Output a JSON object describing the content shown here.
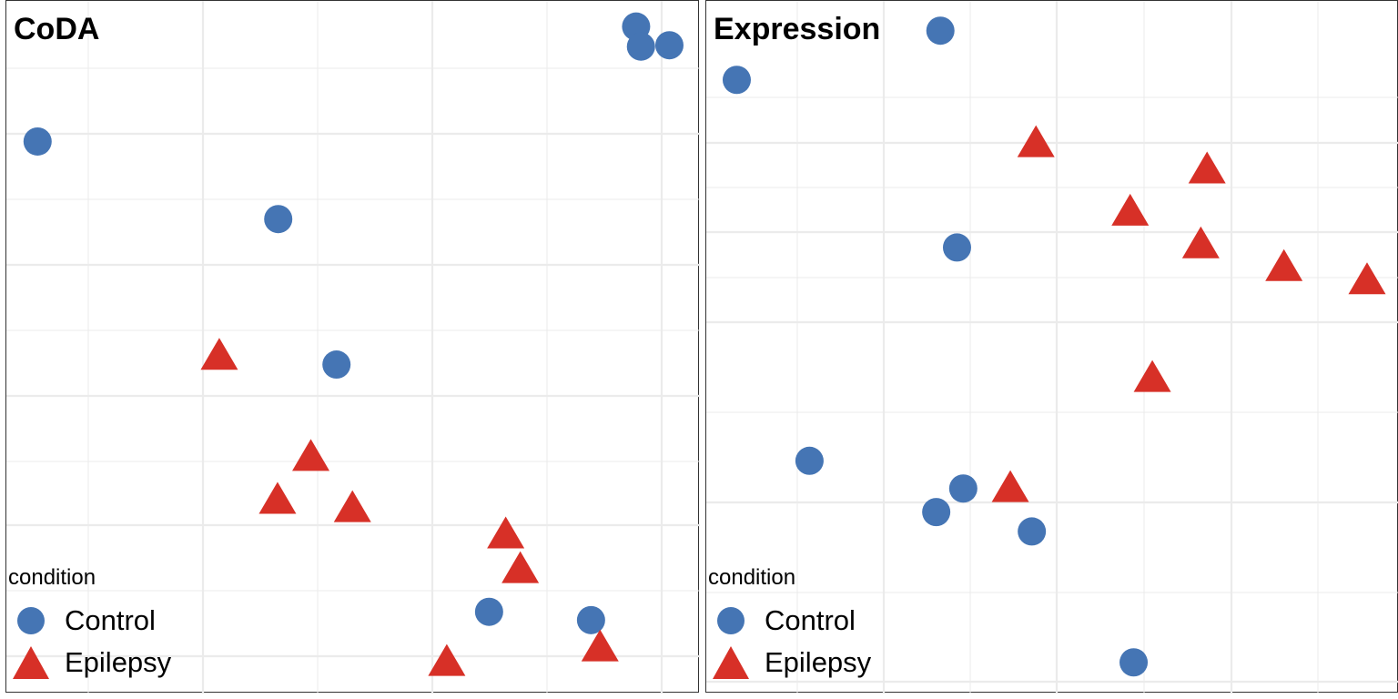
{
  "colors": {
    "Control": "#4575b4",
    "Epilepsy": "#d73027",
    "grid": "#ebebeb"
  },
  "legend": {
    "title": "condition",
    "items": [
      {
        "label": "Control",
        "shape": "circle",
        "color": "#4575b4"
      },
      {
        "label": "Epilepsy",
        "shape": "triangle",
        "color": "#d73027"
      }
    ]
  },
  "chart_data": [
    {
      "type": "scatter",
      "title": "CoDA",
      "xlabel": "",
      "ylabel": "",
      "xlim": [
        0,
        100
      ],
      "ylim": [
        0,
        100
      ],
      "grid": true,
      "legend_position": "bottom-left",
      "series": [
        {
          "name": "Control",
          "shape": "circle",
          "points": [
            [
              90.8,
              96.3
            ],
            [
              91.5,
              93.4
            ],
            [
              95.6,
              93.6
            ],
            [
              4.5,
              79.7
            ],
            [
              39.2,
              68.5
            ],
            [
              47.6,
              47.5
            ],
            [
              69.6,
              11.8
            ],
            [
              84.3,
              10.6
            ]
          ]
        },
        {
          "name": "Epilepsy",
          "shape": "triangle",
          "points": [
            [
              30.7,
              48.5
            ],
            [
              43.9,
              33.9
            ],
            [
              39.1,
              27.7
            ],
            [
              49.9,
              26.5
            ],
            [
              72.0,
              22.7
            ],
            [
              74.1,
              17.7
            ],
            [
              63.5,
              4.3
            ],
            [
              85.6,
              6.4
            ]
          ]
        }
      ]
    },
    {
      "type": "scatter",
      "title": "Expression",
      "xlabel": "",
      "ylabel": "",
      "xlim": [
        0,
        100
      ],
      "ylim": [
        0,
        100
      ],
      "grid": true,
      "legend_position": "bottom-left",
      "series": [
        {
          "name": "Control",
          "shape": "circle",
          "points": [
            [
              33.8,
              95.7
            ],
            [
              4.4,
              88.6
            ],
            [
              36.2,
              64.4
            ],
            [
              14.9,
              33.6
            ],
            [
              37.1,
              29.6
            ],
            [
              33.2,
              26.2
            ],
            [
              47.0,
              23.4
            ],
            [
              61.7,
              4.5
            ]
          ]
        },
        {
          "name": "Epilepsy",
          "shape": "triangle",
          "points": [
            [
              47.6,
              79.2
            ],
            [
              72.3,
              75.4
            ],
            [
              61.2,
              69.3
            ],
            [
              71.4,
              64.6
            ],
            [
              83.4,
              61.3
            ],
            [
              95.4,
              59.4
            ],
            [
              64.4,
              45.3
            ],
            [
              43.9,
              29.4
            ]
          ]
        }
      ]
    }
  ]
}
